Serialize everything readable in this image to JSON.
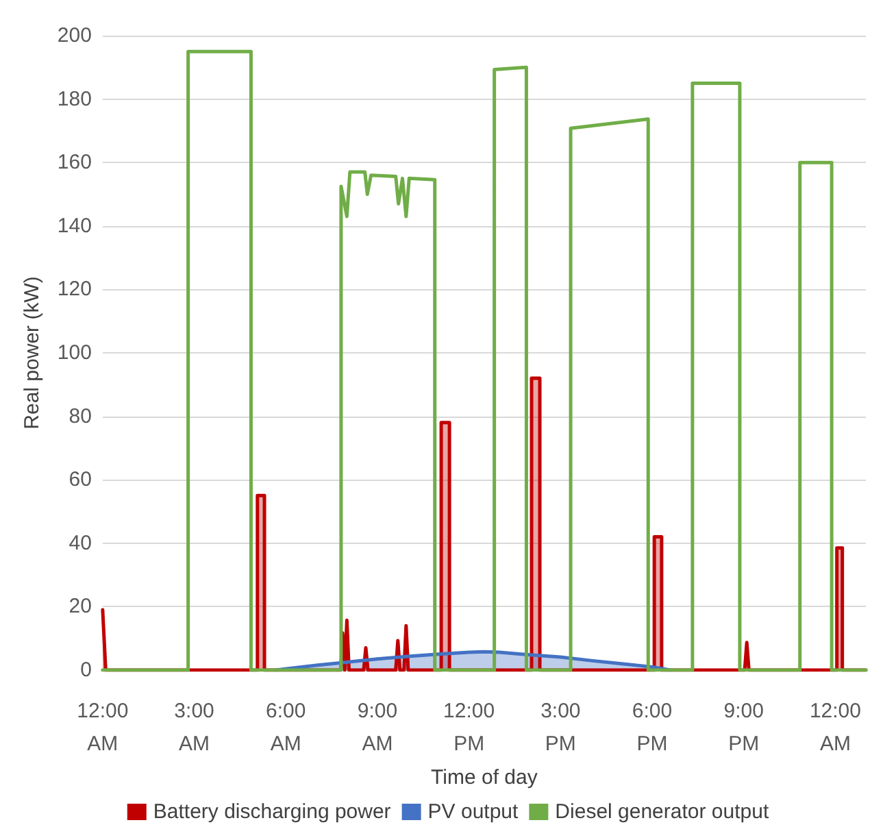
{
  "chart_data": {
    "type": "line",
    "xlabel": "Time of day",
    "ylabel": "Real power (kW)",
    "xlim": [
      0,
      25
    ],
    "ylim": [
      0,
      200
    ],
    "xticks": [
      {
        "value": 0,
        "label": "12:00 AM"
      },
      {
        "value": 3,
        "label": "3:00 AM"
      },
      {
        "value": 6,
        "label": "6:00 AM"
      },
      {
        "value": 9,
        "label": "9:00 AM"
      },
      {
        "value": 12,
        "label": "12:00 PM"
      },
      {
        "value": 15,
        "label": "3:00 PM"
      },
      {
        "value": 18,
        "label": "6:00 PM"
      },
      {
        "value": 21,
        "label": "9:00 PM"
      },
      {
        "value": 24,
        "label": "12:00 AM"
      }
    ],
    "yticks": [
      0,
      20,
      40,
      60,
      80,
      100,
      120,
      140,
      160,
      180,
      200
    ],
    "grid": "y",
    "legend": "bottom",
    "marker": "none",
    "line_style": "solid",
    "series": [
      {
        "name": "Battery discharging power",
        "type": "area",
        "color": "#c00000",
        "x": [
          0,
          0.1,
          5.07,
          5.07,
          5.3,
          5.3,
          7.8,
          7.86,
          7.93,
          8.0,
          8.07,
          8.55,
          8.62,
          8.69,
          9.6,
          9.67,
          9.74,
          9.87,
          9.94,
          10.01,
          11.09,
          11.09,
          11.36,
          11.36,
          14.05,
          14.05,
          14.32,
          14.32,
          18.07,
          18.07,
          18.31,
          18.31,
          21.03,
          21.1,
          21.17,
          24.05,
          24.05,
          24.23,
          24.23,
          25
        ],
        "values": [
          19,
          0,
          0,
          55,
          55,
          0,
          0,
          11.7,
          0,
          15.7,
          0,
          0,
          7,
          0,
          0,
          9.3,
          0,
          0,
          14,
          0,
          0,
          78,
          78,
          0,
          0,
          92,
          92,
          0,
          0,
          42,
          42,
          0,
          0,
          8.7,
          0,
          0,
          38.5,
          38.5,
          0,
          0
        ]
      },
      {
        "name": "PV output",
        "type": "area",
        "color": "#4472c4",
        "x": [
          5.66,
          7,
          8,
          9,
          10,
          11,
          12,
          12.5,
          13,
          14,
          15,
          16,
          17,
          18,
          18.6
        ],
        "values": [
          0,
          1.5,
          2.5,
          3.5,
          4.3,
          5,
          5.6,
          5.8,
          5.6,
          4.8,
          4.1,
          3,
          2,
          1,
          0
        ]
      },
      {
        "name": "Diesel generator output",
        "color": "#70ad47",
        "x": [
          0,
          2.8,
          2.8,
          4.86,
          4.86,
          7.81,
          7.81,
          8.0,
          8.1,
          8.59,
          8.67,
          8.79,
          9.6,
          9.69,
          9.82,
          9.94,
          10.04,
          10.88,
          10.88,
          12.83,
          12.83,
          13.88,
          13.88,
          15.33,
          15.33,
          17.87,
          17.87,
          19.32,
          19.32,
          20.87,
          20.87,
          22.84,
          22.84,
          23.88,
          23.88,
          25
        ],
        "values": [
          0,
          0,
          195,
          195,
          0,
          0,
          152.5,
          143,
          157,
          157,
          150,
          156,
          155.6,
          147,
          155,
          143,
          155,
          154.6,
          0,
          0,
          189.3,
          190,
          0,
          0,
          170.8,
          173.7,
          0,
          0,
          185,
          185,
          0,
          0,
          160,
          160,
          0,
          0
        ]
      }
    ]
  }
}
